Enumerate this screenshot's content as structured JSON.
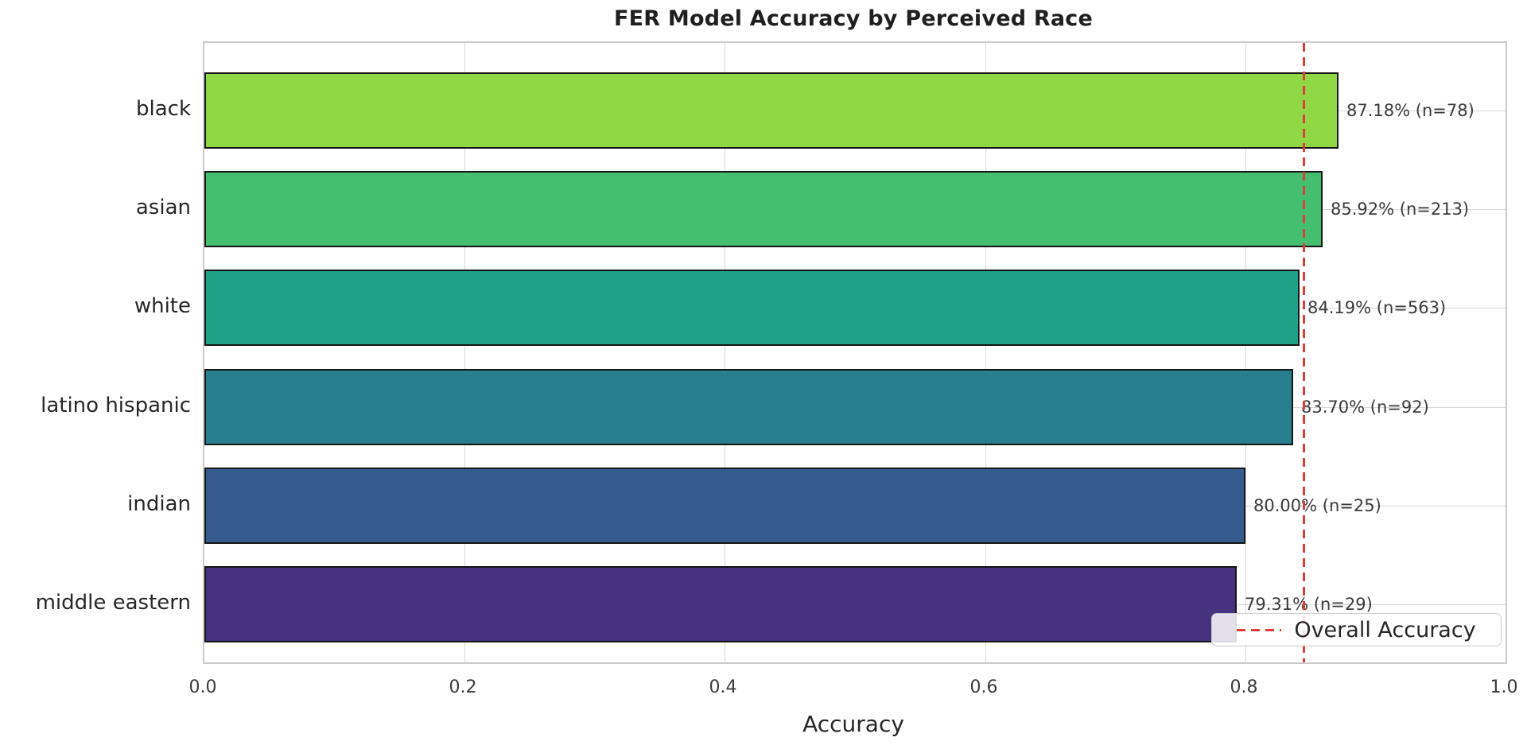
{
  "chart_data": {
    "type": "bar",
    "orientation": "horizontal",
    "title": "FER Model Accuracy by Perceived Race",
    "xlabel": "Accuracy",
    "ylabel": "",
    "xlim": [
      0.0,
      1.0
    ],
    "xticks": [
      0.0,
      0.2,
      0.4,
      0.6,
      0.8,
      1.0
    ],
    "grid": true,
    "categories": [
      "black",
      "asian",
      "white",
      "latino hispanic",
      "indian",
      "middle eastern"
    ],
    "values": [
      0.8718,
      0.8592,
      0.8419,
      0.837,
      0.8,
      0.7931
    ],
    "counts": [
      78,
      213,
      563,
      92,
      25,
      29
    ],
    "bar_value_labels": [
      "87.18% (n=78)",
      "85.92% (n=213)",
      "84.19% (n=563)",
      "83.70% (n=92)",
      "80.00% (n=25)",
      "79.31% (n=29)"
    ],
    "bar_colors": [
      "#8fd744",
      "#44bf70",
      "#1fa187",
      "#277f8e",
      "#365c8d",
      "#46327e"
    ],
    "bar_edge_color": "#161616",
    "grid_color": "#d9d9d9",
    "reference_line": {
      "value": 0.845,
      "label": "Overall Accuracy",
      "color": "#e03c3c",
      "style": "dashed"
    },
    "legend": {
      "position": "lower right",
      "entries": [
        "Overall Accuracy"
      ]
    }
  }
}
